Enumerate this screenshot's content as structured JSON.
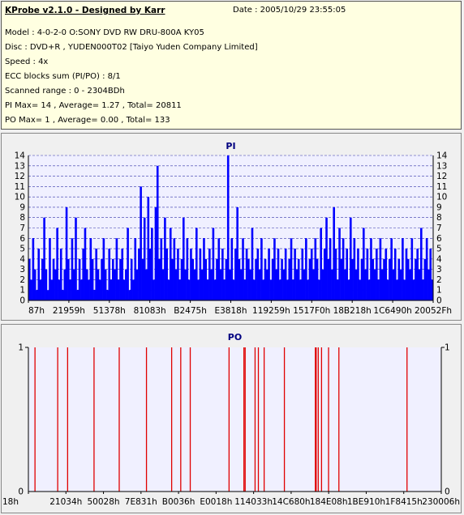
{
  "header": {
    "title": "KProbe v2.1.0 - Designed by Karr",
    "date": "Date : 2005/10/29 23:55:05",
    "lines": [
      "Model : 4-0-2-0 O:SONY    DVD RW DRU-800A  KY05",
      "Disc : DVD+R , YUDEN000T02 [Taiyo Yuden Company Limited]",
      "Speed : 4x",
      "ECC blocks sum (PI/PO) : 8/1",
      "Scanned range : 0 - 2304BDh",
      "PI Max= 14 , Average= 1.27 , Total= 20811",
      "PO Max= 1 , Average= 0.00 , Total= 133"
    ]
  },
  "colors": {
    "pi_bars": "#0000ff",
    "po_bars": "#e00000",
    "plot_bg": "#f0f0ff",
    "grid": "#3333aa",
    "info_bg": "#ffffe1"
  },
  "chart_data": [
    {
      "type": "bar",
      "title": "PI",
      "ylim": [
        0,
        14
      ],
      "yticks": [
        0,
        1,
        2,
        3,
        4,
        5,
        6,
        7,
        8,
        9,
        10,
        11,
        12,
        13,
        14
      ],
      "xticklabels": [
        "87h",
        "21959h",
        "51378h",
        "81083h",
        "B2475h",
        "E3818h",
        "119259h",
        "1517F0h",
        "18B218h",
        "1C6490h",
        "20052Fh"
      ],
      "grid": true,
      "values": [
        4,
        2,
        6,
        3,
        1,
        5,
        2,
        4,
        8,
        3,
        1,
        6,
        2,
        4,
        3,
        7,
        2,
        5,
        1,
        3,
        9,
        4,
        2,
        6,
        3,
        8,
        1,
        4,
        2,
        5,
        7,
        3,
        2,
        6,
        4,
        1,
        5,
        3,
        2,
        4,
        6,
        3,
        1,
        5,
        2,
        4,
        3,
        6,
        2,
        4,
        5,
        2,
        3,
        7,
        1,
        4,
        2,
        6,
        3,
        5,
        11,
        4,
        8,
        3,
        10,
        5,
        7,
        2,
        9,
        13,
        4,
        6,
        3,
        8,
        5,
        2,
        7,
        4,
        6,
        3,
        5,
        2,
        4,
        8,
        3,
        6,
        2,
        5,
        4,
        3,
        7,
        2,
        5,
        3,
        6,
        4,
        2,
        5,
        3,
        7,
        2,
        4,
        6,
        3,
        5,
        2,
        4,
        14,
        3,
        6,
        2,
        5,
        9,
        4,
        3,
        6,
        2,
        5,
        4,
        3,
        7,
        2,
        4,
        5,
        3,
        6,
        2,
        4,
        3,
        5,
        2,
        4,
        6,
        3,
        5,
        2,
        4,
        3,
        5,
        2,
        4,
        6,
        2,
        5,
        3,
        4,
        2,
        5,
        3,
        6,
        2,
        4,
        5,
        3,
        6,
        4,
        2,
        7,
        3,
        5,
        8,
        4,
        6,
        3,
        9,
        5,
        2,
        7,
        4,
        6,
        3,
        5,
        2,
        8,
        4,
        6,
        3,
        5,
        2,
        4,
        7,
        3,
        5,
        2,
        6,
        4,
        3,
        5,
        2,
        6,
        3,
        4,
        5,
        2,
        4,
        6,
        3,
        5,
        2,
        4,
        3,
        6,
        2,
        5,
        4,
        3,
        6,
        2,
        4,
        5,
        3,
        7,
        2,
        4,
        6,
        3,
        5,
        2
      ]
    },
    {
      "type": "bar",
      "title": "PO",
      "ylim": [
        0,
        1
      ],
      "yticks": [
        0,
        1
      ],
      "xticklabels": [
        "18h",
        "21034h",
        "50028h",
        "7E831h",
        "B0036h",
        "E0018h",
        "114033h",
        "14C680h",
        "184E08h",
        "1BE910h",
        "1F8415h",
        "230006h"
      ],
      "grid": false,
      "events": [
        0.016,
        0.071,
        0.095,
        0.159,
        0.22,
        0.286,
        0.347,
        0.369,
        0.392,
        0.486,
        0.522,
        0.525,
        0.549,
        0.557,
        0.571,
        0.62,
        0.695,
        0.697,
        0.702,
        0.71,
        0.727,
        0.752,
        0.917
      ]
    }
  ]
}
